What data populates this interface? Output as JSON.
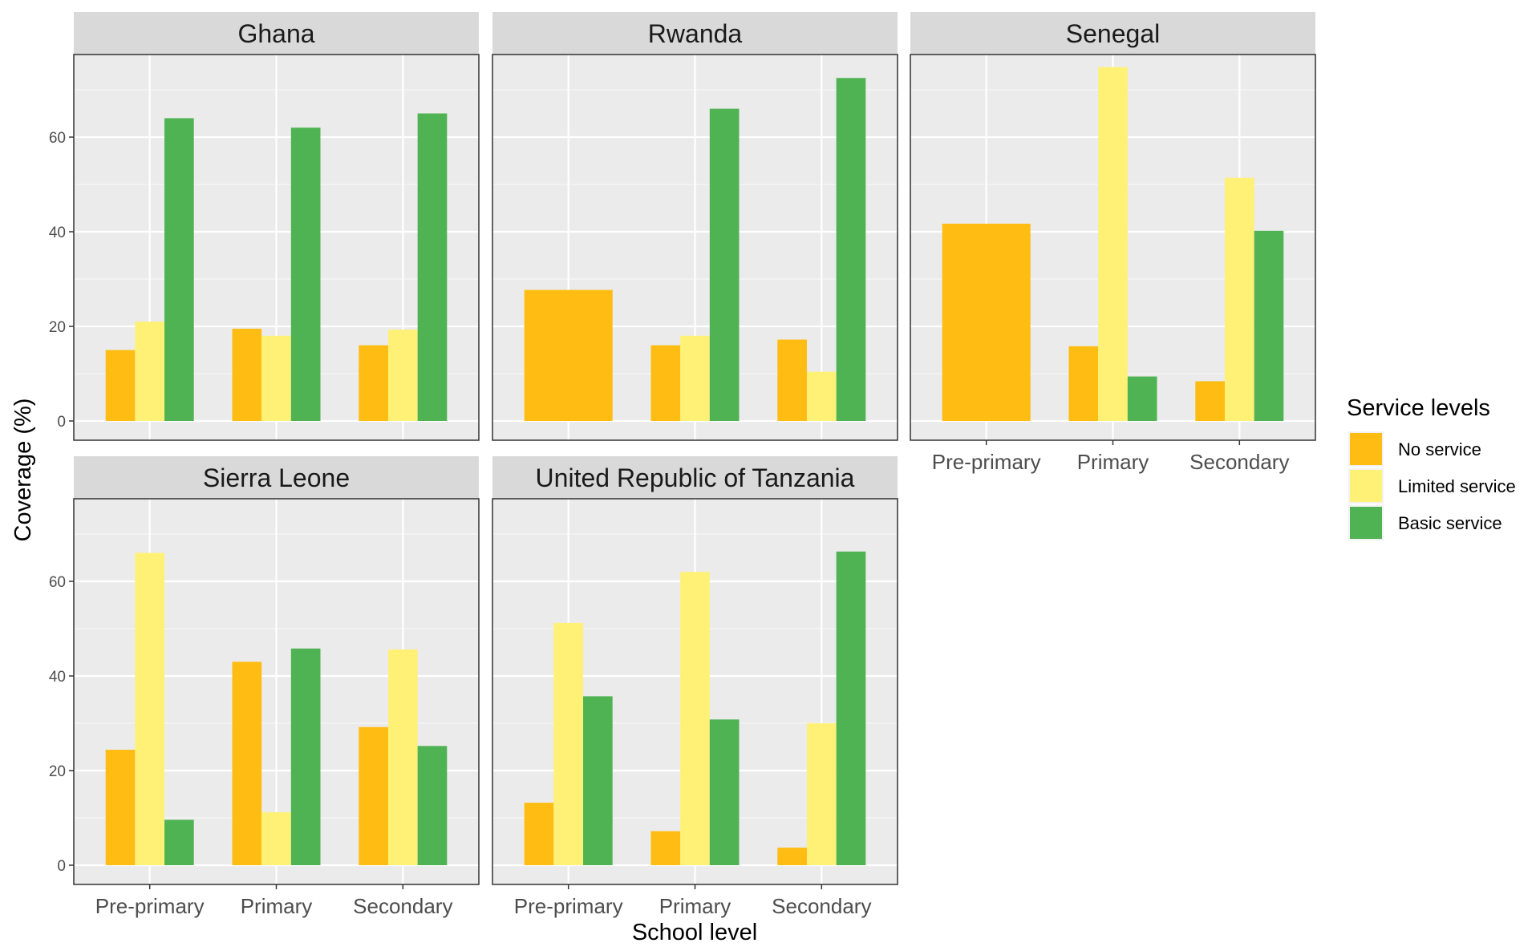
{
  "chart_data": {
    "type": "bar",
    "layout": "faceted-grouped-bar",
    "xlabel": "School level",
    "ylabel": "Coverage (%)",
    "ylim": [
      0,
      78
    ],
    "y_ticks": [
      0,
      20,
      40,
      60
    ],
    "grid": true,
    "categories": [
      "Pre-primary",
      "Primary",
      "Secondary"
    ],
    "legend": {
      "title": "Service levels",
      "placement": "right",
      "entries": [
        {
          "name": "No service",
          "color": "#FFBC12"
        },
        {
          "name": "Limited service",
          "color": "#FFF176"
        },
        {
          "name": "Basic service",
          "color": "#4FB253"
        }
      ]
    },
    "facets": [
      {
        "title": "Ghana",
        "groups": [
          {
            "category": "Pre-primary",
            "values": [
              15,
              21,
              64
            ]
          },
          {
            "category": "Primary",
            "values": [
              19.5,
              18,
              62
            ]
          },
          {
            "category": "Secondary",
            "values": [
              16,
              19.3,
              65
            ]
          }
        ]
      },
      {
        "title": "Rwanda",
        "groups": [
          {
            "category": "Pre-primary",
            "values": [
              27.7
            ]
          },
          {
            "category": "Primary",
            "values": [
              16,
              18,
              66
            ]
          },
          {
            "category": "Secondary",
            "values": [
              17.2,
              10.4,
              72.5
            ]
          }
        ]
      },
      {
        "title": "Senegal",
        "groups": [
          {
            "category": "Pre-primary",
            "values": [
              41.7
            ]
          },
          {
            "category": "Primary",
            "values": [
              15.8,
              74.8,
              9.4
            ]
          },
          {
            "category": "Secondary",
            "values": [
              8.4,
              51.4,
              40.2
            ]
          }
        ]
      },
      {
        "title": "Sierra Leone",
        "groups": [
          {
            "category": "Pre-primary",
            "values": [
              24.4,
              66,
              9.6
            ]
          },
          {
            "category": "Primary",
            "values": [
              43,
              11.2,
              45.8
            ]
          },
          {
            "category": "Secondary",
            "values": [
              29.2,
              45.6,
              25.2
            ]
          }
        ]
      },
      {
        "title": "United Republic of Tanzania",
        "groups": [
          {
            "category": "Pre-primary",
            "values": [
              13.2,
              51.2,
              35.7
            ]
          },
          {
            "category": "Primary",
            "values": [
              7.2,
              62,
              30.8
            ]
          },
          {
            "category": "Secondary",
            "values": [
              3.7,
              30,
              66.3
            ]
          }
        ]
      }
    ]
  }
}
